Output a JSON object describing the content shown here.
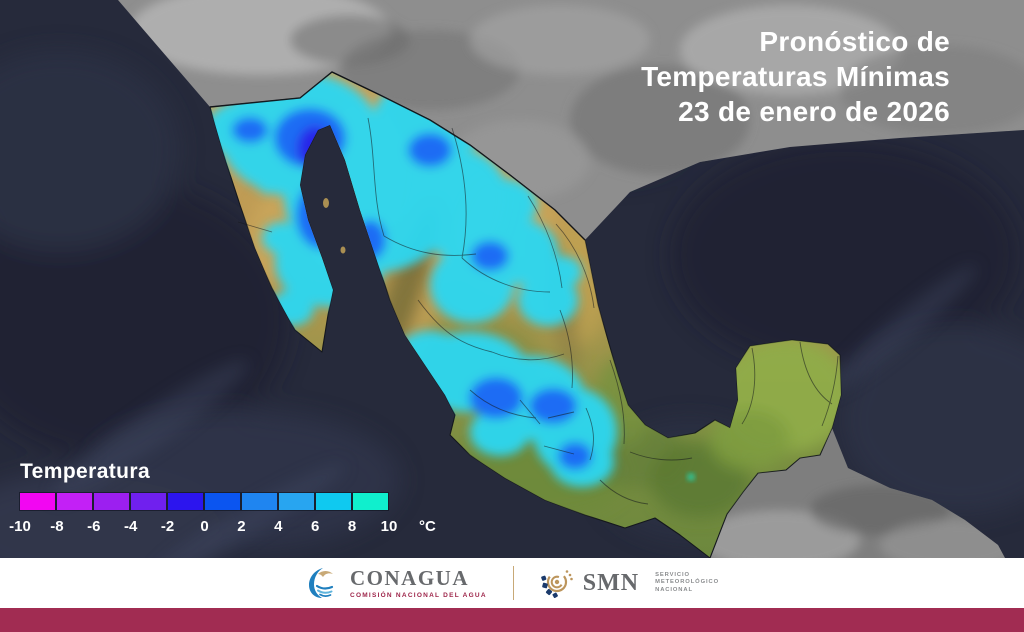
{
  "title": {
    "line1": "Pronóstico de",
    "line2": "Temperaturas Mínimas",
    "line3": "23 de enero de 2026"
  },
  "legend": {
    "title": "Temperatura",
    "unit": "°C",
    "tick_labels": [
      "-10",
      "-8",
      "-6",
      "-4",
      "-2",
      "0",
      "2",
      "4",
      "6",
      "8",
      "10"
    ],
    "colors": [
      "#F206F2",
      "#C320F6",
      "#9C1FF0",
      "#7020EE",
      "#2C15EE",
      "#0B55F0",
      "#1F85F0",
      "#28A5F0",
      "#0FC9F0",
      "#10EFCD"
    ]
  },
  "colors": {
    "footer_stripe": "#A12C52",
    "ocean": "#262A3B"
  },
  "footer": {
    "conagua": {
      "wordmark": "CONAGUA",
      "subtitle": "COMISIÓN NACIONAL DEL AGUA"
    },
    "smn": {
      "wordmark": "SMN",
      "subtitle_lines": [
        "SERVICIO",
        "METEOROLÓGICO",
        "NACIONAL"
      ]
    }
  }
}
